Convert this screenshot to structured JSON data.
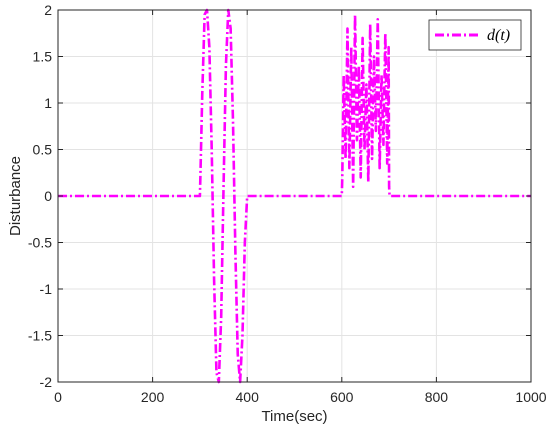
{
  "chart_data": {
    "type": "line",
    "title": "",
    "xlabel": "Time(sec)",
    "ylabel": "Disturbance",
    "xlim": [
      0,
      1000
    ],
    "ylim": [
      -2,
      2
    ],
    "xticks": [
      0,
      200,
      400,
      600,
      800,
      1000
    ],
    "yticks": [
      -2,
      -1.5,
      -1,
      -0.5,
      0,
      0.5,
      1,
      1.5,
      2
    ],
    "xtick_labels": [
      "0",
      "200",
      "400",
      "600",
      "800",
      "1000"
    ],
    "ytick_labels": [
      "-2",
      "-1.5",
      "-1",
      "-0.5",
      "0",
      "0.5",
      "1",
      "1.5",
      "2"
    ],
    "grid": true,
    "legend_position": "top-right",
    "series": [
      {
        "name": "d(t)",
        "color": "#ff00ff",
        "style": "dash-dot",
        "x": [
          0,
          300,
          301,
          305,
          310,
          315,
          320,
          325,
          330,
          335,
          340,
          345,
          350,
          355,
          360,
          365,
          370,
          375,
          380,
          385,
          390,
          395,
          400,
          401,
          600,
          601,
          604,
          608,
          612,
          616,
          620,
          624,
          628,
          632,
          636,
          640,
          644,
          648,
          652,
          656,
          660,
          664,
          668,
          672,
          676,
          680,
          684,
          688,
          692,
          696,
          699,
          700,
          701,
          1000
        ],
        "y": [
          0,
          0,
          0.2,
          1.1,
          1.95,
          2.0,
          1.6,
          0.5,
          -0.9,
          -1.9,
          -2.0,
          -1.3,
          0.1,
          1.4,
          2.0,
          1.8,
          0.8,
          -0.6,
          -1.7,
          -2.0,
          -1.5,
          -0.5,
          0,
          0,
          0,
          0.2,
          1.3,
          0.4,
          1.8,
          0.3,
          1.6,
          0.1,
          1.95,
          0.6,
          1.4,
          0.2,
          1.7,
          0.5,
          1.2,
          0.15,
          1.85,
          0.4,
          1.5,
          0.7,
          1.9,
          0.3,
          1.3,
          0.55,
          1.75,
          0.35,
          1.6,
          0.1,
          0,
          0
        ]
      }
    ]
  }
}
